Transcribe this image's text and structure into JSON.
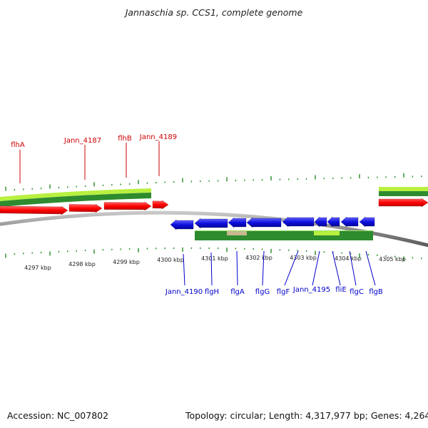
{
  "title": "Jannaschia sp. CCS1, complete genome",
  "footer": {
    "accession": "Accession: NC_007802",
    "summary": "Topology: circular; Length: 4,317,977 bp; Genes: 4,264"
  },
  "colors": {
    "forward_gene": "#ff0000",
    "reverse_gene": "#1010e0",
    "forward_label": "#cc0000",
    "reverse_label": "#0000cc",
    "tick": "#228b22",
    "backbone": "#888888",
    "axis_label": "#222222"
  },
  "kbp_labels": [
    "4297 kbp",
    "4298 kbp",
    "4299 kbp",
    "4300 kbp",
    "4301 kbp",
    "4302 kbp",
    "4303 kbp",
    "4304 kbp",
    "4305 kbp"
  ],
  "forward_genes": [
    {
      "label": "flhA"
    },
    {
      "label": "Jann_4187"
    },
    {
      "label": "flhB"
    },
    {
      "label": "Jann_4189"
    }
  ],
  "reverse_genes": [
    {
      "label": "Jann_4190"
    },
    {
      "label": "flgH"
    },
    {
      "label": "flgA"
    },
    {
      "label": "flgG"
    },
    {
      "label": "flgF"
    },
    {
      "label": "Jann_4195"
    },
    {
      "label": "fliE"
    },
    {
      "label": "flgC"
    },
    {
      "label": "flgB"
    }
  ]
}
